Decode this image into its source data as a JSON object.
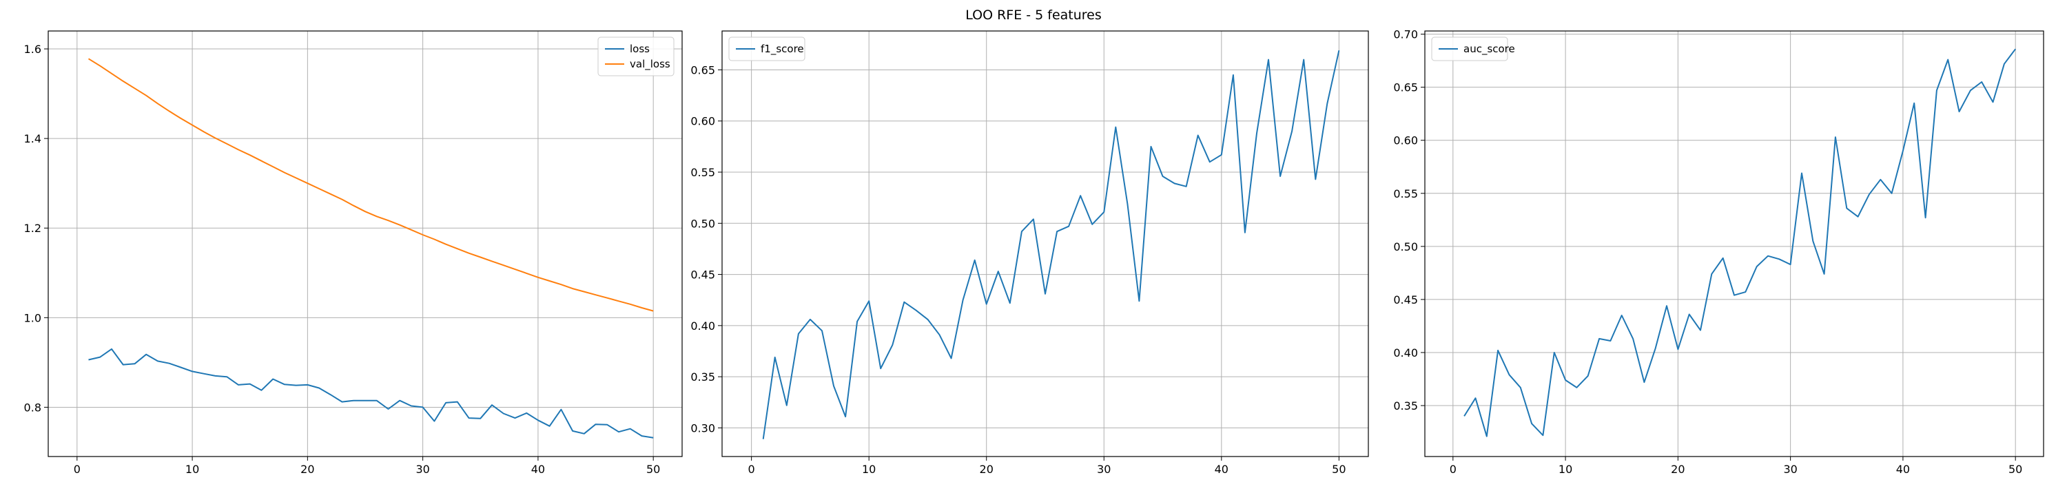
{
  "figure": {
    "suptitle": "LOO RFE - 5 features"
  },
  "colors": {
    "blue": "#1f77b4",
    "orange": "#ff7f0e",
    "grid": "#b0b0b0",
    "axis": "#000000"
  },
  "chart_data": [
    {
      "type": "line",
      "title": "",
      "xlabel": "",
      "ylabel": "",
      "grid": true,
      "legend": "top-right",
      "xlim": [
        -2.5,
        52.5
      ],
      "ylim": [
        0.69,
        1.64
      ],
      "xticks": [
        0,
        10,
        20,
        30,
        40,
        50
      ],
      "yticks": [
        0.8,
        1.0,
        1.2,
        1.4,
        1.6
      ],
      "x": [
        1,
        2,
        3,
        4,
        5,
        6,
        7,
        8,
        9,
        10,
        11,
        12,
        13,
        14,
        15,
        16,
        17,
        18,
        19,
        20,
        21,
        22,
        23,
        24,
        25,
        26,
        27,
        28,
        29,
        30,
        31,
        32,
        33,
        34,
        35,
        36,
        37,
        38,
        39,
        40,
        41,
        42,
        43,
        44,
        45,
        46,
        47,
        48,
        49,
        50
      ],
      "series": [
        {
          "name": "loss",
          "color": "#1f77b4",
          "values": [
            0.906,
            0.912,
            0.93,
            0.895,
            0.897,
            0.918,
            0.903,
            0.898,
            0.889,
            0.88,
            0.875,
            0.87,
            0.868,
            0.85,
            0.852,
            0.838,
            0.863,
            0.851,
            0.849,
            0.85,
            0.843,
            0.828,
            0.812,
            0.815,
            0.815,
            0.815,
            0.796,
            0.815,
            0.803,
            0.8,
            0.769,
            0.81,
            0.812,
            0.776,
            0.775,
            0.805,
            0.786,
            0.776,
            0.787,
            0.771,
            0.758,
            0.795,
            0.747,
            0.741,
            0.762,
            0.761,
            0.745,
            0.752,
            0.736,
            0.732
          ]
        },
        {
          "name": "val_loss",
          "color": "#ff7f0e",
          "values": [
            1.578,
            1.562,
            1.545,
            1.528,
            1.512,
            1.496,
            1.478,
            1.461,
            1.445,
            1.43,
            1.415,
            1.401,
            1.388,
            1.375,
            1.363,
            1.35,
            1.337,
            1.324,
            1.312,
            1.3,
            1.288,
            1.276,
            1.264,
            1.25,
            1.237,
            1.226,
            1.217,
            1.207,
            1.196,
            1.185,
            1.175,
            1.164,
            1.154,
            1.144,
            1.135,
            1.126,
            1.117,
            1.108,
            1.099,
            1.09,
            1.082,
            1.074,
            1.065,
            1.058,
            1.051,
            1.044,
            1.037,
            1.03,
            1.022,
            1.015
          ]
        }
      ]
    },
    {
      "type": "line",
      "title": "",
      "xlabel": "",
      "ylabel": "",
      "grid": true,
      "legend": "top-left",
      "xlim": [
        -2.5,
        52.5
      ],
      "ylim": [
        0.272,
        0.688
      ],
      "xticks": [
        0,
        10,
        20,
        30,
        40,
        50
      ],
      "yticks": [
        0.3,
        0.35,
        0.4,
        0.45,
        0.5,
        0.55,
        0.6,
        0.65
      ],
      "ytick_labels": [
        "0.30",
        "0.35",
        "0.40",
        "0.45",
        "0.50",
        "0.55",
        "0.60",
        "0.65"
      ],
      "x": [
        1,
        2,
        3,
        4,
        5,
        6,
        7,
        8,
        9,
        10,
        11,
        12,
        13,
        14,
        15,
        16,
        17,
        18,
        19,
        20,
        21,
        22,
        23,
        24,
        25,
        26,
        27,
        28,
        29,
        30,
        31,
        32,
        33,
        34,
        35,
        36,
        37,
        38,
        39,
        40,
        41,
        42,
        43,
        44,
        45,
        46,
        47,
        48,
        49,
        50
      ],
      "series": [
        {
          "name": "f1_score",
          "color": "#1f77b4",
          "values": [
            0.289,
            0.369,
            0.322,
            0.392,
            0.406,
            0.395,
            0.341,
            0.311,
            0.404,
            0.424,
            0.358,
            0.381,
            0.423,
            0.415,
            0.406,
            0.391,
            0.368,
            0.425,
            0.464,
            0.421,
            0.453,
            0.422,
            0.492,
            0.504,
            0.431,
            0.492,
            0.497,
            0.527,
            0.499,
            0.511,
            0.594,
            0.519,
            0.424,
            0.575,
            0.546,
            0.539,
            0.536,
            0.586,
            0.56,
            0.567,
            0.645,
            0.491,
            0.588,
            0.66,
            0.546,
            0.59,
            0.66,
            0.543,
            0.617,
            0.669
          ]
        }
      ]
    },
    {
      "type": "line",
      "title": "",
      "xlabel": "",
      "ylabel": "",
      "grid": true,
      "legend": "top-left",
      "xlim": [
        -2.5,
        52.5
      ],
      "ylim": [
        0.302,
        0.703
      ],
      "xticks": [
        0,
        10,
        20,
        30,
        40,
        50
      ],
      "yticks": [
        0.35,
        0.4,
        0.45,
        0.5,
        0.55,
        0.6,
        0.65,
        0.7
      ],
      "ytick_labels": [
        "0.35",
        "0.40",
        "0.45",
        "0.50",
        "0.55",
        "0.60",
        "0.65",
        "0.70"
      ],
      "x": [
        1,
        2,
        3,
        4,
        5,
        6,
        7,
        8,
        9,
        10,
        11,
        12,
        13,
        14,
        15,
        16,
        17,
        18,
        19,
        20,
        21,
        22,
        23,
        24,
        25,
        26,
        27,
        28,
        29,
        30,
        31,
        32,
        33,
        34,
        35,
        36,
        37,
        38,
        39,
        40,
        41,
        42,
        43,
        44,
        45,
        46,
        47,
        48,
        49,
        50
      ],
      "series": [
        {
          "name": "auc_score",
          "color": "#1f77b4",
          "values": [
            0.34,
            0.357,
            0.321,
            0.402,
            0.379,
            0.367,
            0.333,
            0.322,
            0.4,
            0.374,
            0.367,
            0.378,
            0.413,
            0.411,
            0.435,
            0.413,
            0.372,
            0.404,
            0.444,
            0.403,
            0.436,
            0.421,
            0.474,
            0.489,
            0.454,
            0.457,
            0.481,
            0.491,
            0.488,
            0.483,
            0.569,
            0.505,
            0.474,
            0.603,
            0.536,
            0.528,
            0.549,
            0.563,
            0.55,
            0.59,
            0.635,
            0.527,
            0.647,
            0.676,
            0.627,
            0.647,
            0.655,
            0.636,
            0.672,
            0.686
          ]
        }
      ]
    }
  ]
}
